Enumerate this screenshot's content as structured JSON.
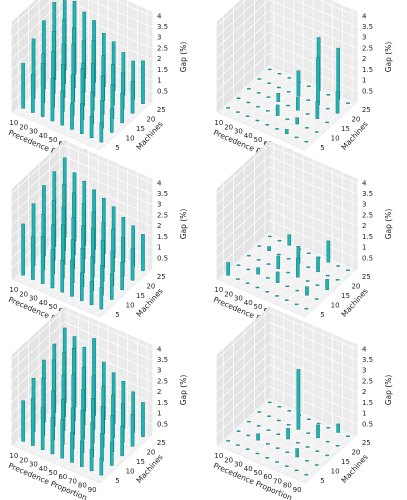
{
  "chart_data": [
    {
      "type": "bar3d",
      "xlabel": "Precedence Proportion",
      "ylabel": "Machines",
      "zlabel": "Gap (%)",
      "color": "#1fb3b3",
      "xlim": [
        5,
        95
      ],
      "ylim": [
        2,
        27
      ],
      "zlim": [
        0,
        4.2
      ],
      "xticks": [
        10,
        20,
        30,
        40,
        50,
        60,
        70,
        80,
        90
      ],
      "yticks": [
        5,
        10,
        15,
        20,
        25
      ],
      "zticks": [
        0.5,
        1.0,
        1.5,
        2.0,
        2.5,
        3.0,
        3.5,
        4.0
      ],
      "x": [
        10,
        20,
        30,
        40,
        50,
        60,
        70,
        80,
        90,
        10,
        20,
        30,
        40,
        50,
        60,
        70,
        80,
        90,
        10,
        20,
        30,
        40,
        50,
        60,
        70,
        80,
        90,
        10,
        20,
        30,
        40,
        50,
        60,
        70,
        80,
        90,
        10,
        20,
        30,
        40,
        50,
        60,
        70,
        80,
        90
      ],
      "y": [
        5,
        5,
        5,
        5,
        5,
        5,
        5,
        5,
        5,
        10,
        10,
        10,
        10,
        10,
        10,
        10,
        10,
        10,
        15,
        15,
        15,
        15,
        15,
        15,
        15,
        15,
        15,
        20,
        20,
        20,
        20,
        20,
        20,
        20,
        20,
        20,
        25,
        25,
        25,
        25,
        25,
        25,
        25,
        25,
        25
      ],
      "values": [
        2.1,
        1.8,
        2.5,
        2.0,
        1.6,
        1.2,
        1.4,
        1.0,
        0.9,
        2.8,
        2.3,
        2.6,
        2.2,
        1.9,
        2.4,
        1.5,
        1.3,
        1.1,
        3.2,
        2.9,
        2.5,
        2.7,
        2.0,
        2.2,
        1.8,
        1.6,
        1.4,
        3.6,
        3.0,
        2.8,
        2.4,
        2.6,
        2.1,
        1.9,
        1.7,
        1.5,
        3.9,
        3.4,
        3.1,
        2.9,
        2.5,
        2.3,
        2.0,
        1.8,
        2.0
      ]
    },
    {
      "type": "bar3d",
      "xlabel": "Precedence Proportion",
      "ylabel": "Machines",
      "zlabel": "Gap (%)",
      "color": "#1fb3b3",
      "xlim": [
        5,
        95
      ],
      "ylim": [
        2,
        27
      ],
      "zlim": [
        0,
        4.2
      ],
      "xticks": [
        10,
        20,
        30,
        40,
        50,
        60,
        70,
        80,
        90
      ],
      "yticks": [
        5,
        10,
        15,
        20,
        25
      ],
      "zticks": [
        0.5,
        1.0,
        1.5,
        2.0,
        2.5,
        3.0,
        3.5,
        4.0
      ],
      "x": [
        10,
        20,
        30,
        40,
        50,
        60,
        70,
        80,
        90,
        10,
        20,
        30,
        40,
        50,
        60,
        70,
        80,
        90,
        10,
        20,
        30,
        40,
        50,
        60,
        70,
        80,
        90,
        10,
        20,
        30,
        40,
        50,
        60,
        70,
        80,
        90,
        10,
        20,
        30,
        40,
        50,
        60,
        70,
        80,
        90
      ],
      "y": [
        5,
        5,
        5,
        5,
        5,
        5,
        5,
        5,
        5,
        10,
        10,
        10,
        10,
        10,
        10,
        10,
        10,
        10,
        15,
        15,
        15,
        15,
        15,
        15,
        15,
        15,
        15,
        20,
        20,
        20,
        20,
        20,
        20,
        20,
        20,
        20,
        25,
        25,
        25,
        25,
        25,
        25,
        25,
        25,
        25
      ],
      "values": [
        0,
        0,
        0,
        0,
        0,
        0,
        0.2,
        0,
        0,
        0,
        0,
        0,
        0,
        0.5,
        0,
        0.3,
        0,
        0,
        0,
        0,
        0,
        0.4,
        0,
        0.6,
        0,
        0.8,
        0,
        0,
        0,
        0,
        0,
        1.2,
        0,
        2.2,
        0,
        1.0,
        0,
        0,
        0,
        0,
        0,
        2.5,
        0,
        2.4,
        0
      ]
    },
    {
      "type": "bar3d",
      "xlabel": "Precedence Proportion",
      "ylabel": "Machines",
      "zlabel": "Gap (%)",
      "color": "#1fb3b3",
      "xlim": [
        5,
        95
      ],
      "ylim": [
        2,
        27
      ],
      "zlim": [
        0,
        4.2
      ],
      "xticks": [
        10,
        20,
        30,
        40,
        50,
        60,
        70,
        80,
        90
      ],
      "yticks": [
        5,
        10,
        15,
        20,
        25
      ],
      "zticks": [
        0.5,
        1.0,
        1.5,
        2.0,
        2.5,
        3.0,
        3.5,
        4.0
      ],
      "x": [
        10,
        20,
        30,
        40,
        50,
        60,
        70,
        80,
        90,
        10,
        20,
        30,
        40,
        50,
        60,
        70,
        80,
        90,
        10,
        20,
        30,
        40,
        50,
        60,
        70,
        80,
        90,
        10,
        20,
        30,
        40,
        50,
        60,
        70,
        80,
        90,
        10,
        20,
        30,
        40,
        50,
        60,
        70,
        80,
        90
      ],
      "y": [
        5,
        5,
        5,
        5,
        5,
        5,
        5,
        5,
        5,
        10,
        10,
        10,
        10,
        10,
        10,
        10,
        10,
        10,
        15,
        15,
        15,
        15,
        15,
        15,
        15,
        15,
        15,
        20,
        20,
        20,
        20,
        20,
        20,
        20,
        20,
        20,
        25,
        25,
        25,
        25,
        25,
        25,
        25,
        25,
        25
      ],
      "values": [
        2.4,
        2.0,
        2.2,
        1.8,
        1.5,
        1.7,
        1.3,
        1.1,
        1.0,
        2.9,
        2.6,
        2.3,
        2.5,
        2.0,
        1.8,
        1.6,
        1.4,
        1.2,
        3.3,
        2.8,
        2.7,
        2.4,
        2.2,
        2.3,
        1.9,
        1.6,
        1.3,
        3.5,
        3.1,
        2.9,
        2.6,
        2.4,
        2.1,
        2.0,
        1.8,
        1.5,
        3.7,
        3.2,
        3.0,
        2.8,
        2.6,
        2.4,
        2.1,
        1.9,
        1.7
      ]
    },
    {
      "type": "bar3d",
      "xlabel": "Precedence Proportion",
      "ylabel": "Machines",
      "zlabel": "Gap (%)",
      "color": "#1fb3b3",
      "xlim": [
        5,
        95
      ],
      "ylim": [
        2,
        27
      ],
      "zlim": [
        0,
        4.2
      ],
      "xticks": [
        10,
        20,
        30,
        40,
        50,
        60,
        70,
        80,
        90
      ],
      "yticks": [
        5,
        10,
        15,
        20,
        25
      ],
      "zticks": [
        0.5,
        1.0,
        1.5,
        2.0,
        2.5,
        3.0,
        3.5,
        4.0
      ],
      "x": [
        10,
        20,
        30,
        40,
        50,
        60,
        70,
        80,
        90,
        10,
        20,
        30,
        40,
        50,
        60,
        70,
        80,
        90,
        10,
        20,
        30,
        40,
        50,
        60,
        70,
        80,
        90,
        10,
        20,
        30,
        40,
        50,
        60,
        70,
        80,
        90,
        10,
        20,
        30,
        40,
        50,
        60,
        70,
        80,
        90
      ],
      "y": [
        5,
        5,
        5,
        5,
        5,
        5,
        5,
        5,
        5,
        10,
        10,
        10,
        10,
        10,
        10,
        10,
        10,
        10,
        15,
        15,
        15,
        15,
        15,
        15,
        15,
        15,
        15,
        20,
        20,
        20,
        20,
        20,
        20,
        20,
        20,
        20,
        25,
        25,
        25,
        25,
        25,
        25,
        25,
        25,
        25
      ],
      "values": [
        0.6,
        0,
        0,
        0,
        0,
        0,
        0,
        0,
        0,
        0,
        0,
        0.3,
        0,
        0.5,
        0,
        0,
        0.4,
        0,
        0,
        0,
        0,
        0.6,
        0,
        0.9,
        0,
        0,
        0.5,
        0,
        0.2,
        0,
        0,
        0.8,
        0,
        0.7,
        0,
        0,
        0,
        0,
        0.5,
        0,
        0,
        0,
        1.0,
        0,
        0
      ]
    },
    {
      "type": "bar3d",
      "xlabel": "Precedence Proportion",
      "ylabel": "Machines",
      "zlabel": "Gap (%)",
      "color": "#1fb3b3",
      "xlim": [
        5,
        95
      ],
      "ylim": [
        2,
        27
      ],
      "zlim": [
        0,
        4.2
      ],
      "xticks": [
        10,
        20,
        30,
        40,
        50,
        60,
        70,
        80,
        90
      ],
      "yticks": [
        5,
        10,
        15,
        20,
        25
      ],
      "zticks": [
        0.5,
        1.0,
        1.5,
        2.0,
        2.5,
        3.0,
        3.5,
        4.0
      ],
      "x": [
        10,
        20,
        30,
        40,
        50,
        60,
        70,
        80,
        90,
        10,
        20,
        30,
        40,
        50,
        60,
        70,
        80,
        90,
        10,
        20,
        30,
        40,
        50,
        60,
        70,
        80,
        90,
        10,
        20,
        30,
        40,
        50,
        60,
        70,
        80,
        90,
        10,
        20,
        30,
        40,
        50,
        60,
        70,
        80,
        90
      ],
      "y": [
        5,
        5,
        5,
        5,
        5,
        5,
        5,
        5,
        5,
        10,
        10,
        10,
        10,
        10,
        10,
        10,
        10,
        10,
        15,
        15,
        15,
        15,
        15,
        15,
        15,
        15,
        15,
        20,
        20,
        20,
        20,
        20,
        20,
        20,
        20,
        20,
        25,
        25,
        25,
        25,
        25,
        25,
        25,
        25,
        25
      ],
      "values": [
        1.9,
        2.2,
        2.0,
        1.7,
        1.8,
        1.4,
        1.2,
        1.0,
        0.8,
        2.5,
        2.7,
        2.3,
        2.1,
        1.9,
        2.0,
        1.6,
        1.3,
        1.1,
        2.9,
        3.1,
        2.6,
        2.8,
        2.3,
        2.1,
        1.9,
        1.7,
        1.4,
        3.2,
        3.0,
        3.4,
        2.7,
        2.5,
        2.2,
        2.0,
        1.8,
        1.5,
        3.5,
        3.3,
        3.0,
        3.6,
        2.7,
        2.4,
        2.2,
        1.9,
        1.6
      ]
    },
    {
      "type": "bar3d",
      "xlabel": "Precedence Proportion",
      "ylabel": "Machines",
      "zlabel": "Gap (%)",
      "color": "#1fb3b3",
      "xlim": [
        5,
        95
      ],
      "ylim": [
        2,
        27
      ],
      "zlim": [
        0,
        4.2
      ],
      "xticks": [
        10,
        20,
        30,
        40,
        50,
        60,
        70,
        80,
        90
      ],
      "yticks": [
        5,
        10,
        15,
        20,
        25
      ],
      "zticks": [
        0.5,
        1.0,
        1.5,
        2.0,
        2.5,
        3.0,
        3.5,
        4.0
      ],
      "x": [
        10,
        20,
        30,
        40,
        50,
        60,
        70,
        80,
        90,
        10,
        20,
        30,
        40,
        50,
        60,
        70,
        80,
        90,
        10,
        20,
        30,
        40,
        50,
        60,
        70,
        80,
        90,
        10,
        20,
        30,
        40,
        50,
        60,
        70,
        80,
        90,
        10,
        20,
        30,
        40,
        50,
        60,
        70,
        80,
        90
      ],
      "y": [
        5,
        5,
        5,
        5,
        5,
        5,
        5,
        5,
        5,
        10,
        10,
        10,
        10,
        10,
        10,
        10,
        10,
        10,
        15,
        15,
        15,
        15,
        15,
        15,
        15,
        15,
        15,
        20,
        20,
        20,
        20,
        20,
        20,
        20,
        20,
        20,
        25,
        25,
        25,
        25,
        25,
        25,
        25,
        25,
        25
      ],
      "values": [
        0,
        0,
        0,
        0,
        0,
        0,
        0,
        0,
        0,
        0,
        0,
        0.3,
        0,
        0,
        0,
        0.4,
        0,
        0,
        0,
        0,
        0,
        0,
        0.5,
        0,
        0,
        0,
        0,
        0,
        0,
        0,
        0,
        2.8,
        0,
        0.6,
        0,
        0,
        0,
        0,
        0,
        0,
        0,
        0,
        0,
        0.4,
        0
      ]
    }
  ]
}
